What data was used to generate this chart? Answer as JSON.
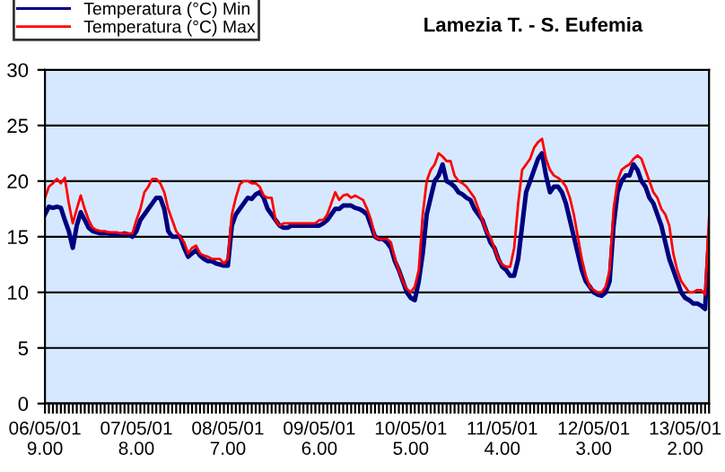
{
  "chart_data": {
    "type": "line",
    "title": "Lamezia T. - S. Eufemia",
    "categories": [
      "06/05/01\n9.00",
      null,
      null,
      null,
      null,
      null,
      null,
      null,
      null,
      null,
      null,
      null,
      null,
      null,
      null,
      null,
      null,
      null,
      null,
      null,
      null,
      null,
      null,
      "07/05/01\n8.00",
      null,
      null,
      null,
      null,
      null,
      null,
      null,
      null,
      null,
      null,
      null,
      null,
      null,
      null,
      null,
      null,
      null,
      null,
      null,
      null,
      null,
      null,
      "08/05/01\n7.00",
      null,
      null,
      null,
      null,
      null,
      null,
      null,
      null,
      null,
      null,
      null,
      null,
      null,
      null,
      null,
      null,
      null,
      null,
      null,
      null,
      null,
      null,
      "09/05/01\n6.00",
      null,
      null,
      null,
      null,
      null,
      null,
      null,
      null,
      null,
      null,
      null,
      null,
      null,
      null,
      null,
      null,
      null,
      null,
      null,
      null,
      null,
      null,
      "10/05/01\n5.00",
      null,
      null,
      null,
      null,
      null,
      null,
      null,
      null,
      null,
      null,
      null,
      null,
      null,
      null,
      null,
      null,
      null,
      null,
      null,
      null,
      null,
      null,
      "11/05/01\n4.00",
      null,
      null,
      null,
      null,
      null,
      null,
      null,
      null,
      null,
      null,
      null,
      null,
      null,
      null,
      null,
      null,
      null,
      null,
      null,
      null,
      null,
      null,
      "12/05/01\n3.00",
      null,
      null,
      null,
      null,
      null,
      null,
      null,
      null,
      null,
      null,
      null,
      null,
      null,
      null,
      null,
      null,
      null,
      null,
      null,
      null,
      null,
      null,
      "13/05/01\n2.00",
      null,
      null,
      null,
      null,
      null,
      null
    ],
    "series": [
      {
        "name": "Temperatura (°C) Min",
        "color": "#000080",
        "values": [
          17.0,
          17.7,
          17.6,
          17.7,
          17.6,
          16.5,
          15.5,
          14.0,
          16.0,
          17.2,
          16.5,
          15.8,
          15.5,
          15.4,
          15.3,
          15.3,
          15.3,
          15.2,
          15.2,
          15.2,
          15.3,
          15.2,
          15.0,
          15.5,
          16.5,
          17.0,
          17.5,
          18.0,
          18.5,
          18.5,
          17.5,
          15.5,
          15.0,
          15.0,
          15.0,
          14.0,
          13.2,
          13.5,
          13.8,
          13.3,
          13.0,
          12.8,
          12.8,
          12.6,
          12.5,
          12.4,
          12.4,
          16.0,
          17.0,
          17.5,
          18.0,
          18.5,
          18.4,
          18.8,
          19.0,
          18.5,
          17.5,
          17.0,
          16.5,
          16.0,
          15.8,
          15.8,
          16.0,
          16.0,
          16.0,
          16.0,
          16.0,
          16.0,
          16.0,
          16.0,
          16.2,
          16.5,
          17.0,
          17.5,
          17.5,
          17.8,
          17.8,
          17.8,
          17.6,
          17.5,
          17.3,
          17.0,
          16.0,
          15.0,
          14.8,
          14.8,
          14.5,
          14.0,
          12.8,
          12.0,
          11.0,
          10.0,
          9.5,
          9.3,
          11.0,
          13.5,
          17.0,
          18.5,
          20.0,
          20.5,
          21.5,
          20.0,
          19.8,
          19.5,
          19.0,
          18.8,
          18.5,
          18.3,
          17.5,
          17.0,
          16.5,
          15.5,
          14.5,
          14.0,
          13.0,
          12.3,
          12.0,
          11.5,
          11.5,
          13.0,
          16.0,
          19.0,
          20.0,
          21.0,
          22.0,
          22.5,
          20.5,
          19.0,
          19.5,
          19.5,
          19.0,
          18.0,
          16.5,
          15.0,
          13.5,
          12.0,
          11.0,
          10.5,
          10.0,
          9.8,
          9.7,
          10.0,
          11.0,
          16.0,
          19.0,
          20.0,
          20.5,
          20.5,
          21.5,
          21.0,
          20.0,
          19.5,
          18.5,
          18.0,
          17.0,
          16.0,
          14.5,
          13.0,
          12.0,
          11.0,
          10.0,
          9.5,
          9.3,
          9.0,
          9.0,
          8.8,
          8.5,
          15.0
        ]
      },
      {
        "name": "Temperatura (°C) Max",
        "color": "#ff0000",
        "values": [
          18.5,
          19.5,
          19.8,
          20.2,
          19.8,
          20.3,
          18.0,
          16.2,
          17.5,
          18.7,
          17.5,
          16.5,
          15.8,
          15.6,
          15.5,
          15.5,
          15.4,
          15.4,
          15.4,
          15.3,
          15.3,
          15.3,
          15.3,
          16.5,
          17.5,
          19.0,
          19.5,
          20.2,
          20.2,
          19.8,
          19.0,
          17.5,
          16.5,
          15.5,
          15.0,
          14.5,
          13.5,
          14.0,
          14.2,
          13.5,
          13.3,
          13.2,
          13.0,
          13.0,
          13.0,
          12.6,
          13.0,
          17.0,
          18.5,
          19.7,
          20.0,
          20.0,
          19.8,
          19.8,
          19.5,
          18.7,
          18.5,
          18.5,
          16.5,
          16.0,
          16.2,
          16.2,
          16.2,
          16.2,
          16.2,
          16.2,
          16.2,
          16.2,
          16.2,
          16.5,
          16.5,
          17.0,
          18.0,
          19.0,
          18.3,
          18.7,
          18.8,
          18.5,
          18.7,
          18.5,
          18.3,
          17.5,
          16.5,
          15.0,
          14.8,
          14.8,
          14.8,
          14.5,
          13.0,
          12.0,
          11.0,
          10.3,
          10.0,
          10.5,
          12.0,
          17.0,
          20.0,
          21.0,
          21.5,
          22.5,
          22.2,
          21.8,
          21.8,
          20.5,
          20.0,
          19.8,
          19.5,
          19.0,
          18.5,
          17.5,
          16.5,
          15.5,
          15.0,
          14.0,
          13.0,
          12.5,
          12.3,
          12.3,
          14.0,
          18.0,
          21.0,
          21.5,
          22.0,
          23.0,
          23.5,
          23.8,
          22.0,
          21.0,
          20.5,
          20.3,
          20.0,
          19.5,
          18.5,
          17.0,
          15.0,
          13.0,
          11.5,
          10.5,
          10.2,
          10.0,
          10.0,
          10.5,
          12.0,
          17.5,
          20.0,
          21.0,
          21.3,
          21.5,
          22.0,
          22.3,
          22.0,
          21.0,
          20.0,
          19.0,
          18.5,
          17.5,
          17.0,
          16.0,
          13.5,
          12.0,
          11.0,
          10.5,
          10.0,
          10.0,
          10.2,
          10.2,
          9.8,
          16.7
        ]
      }
    ],
    "ylim": [
      0,
      30
    ],
    "yticks": [
      0,
      5,
      10,
      15,
      20,
      25,
      30
    ],
    "grid": "y",
    "legend": "top left",
    "marker": "none",
    "line_style": "solid"
  }
}
